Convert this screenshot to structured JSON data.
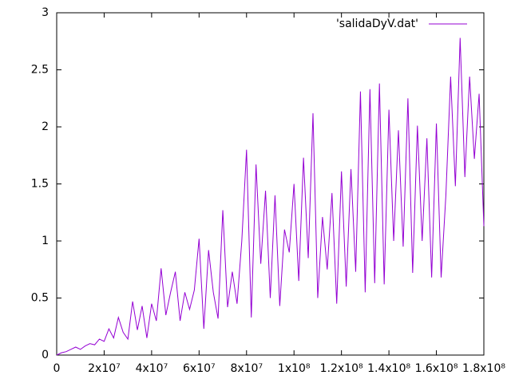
{
  "chart_data": {
    "type": "line",
    "series": [
      {
        "name": "'salidaDyV.dat'",
        "color": "#9400d3",
        "values": [
          0,
          0.02,
          0.03,
          0.05,
          0.07,
          0.05,
          0.08,
          0.1,
          0.09,
          0.14,
          0.12,
          0.23,
          0.15,
          0.33,
          0.2,
          0.14,
          0.47,
          0.22,
          0.43,
          0.15,
          0.45,
          0.3,
          0.76,
          0.35,
          0.55,
          0.73,
          0.3,
          0.55,
          0.4,
          0.57,
          1.02,
          0.23,
          0.92,
          0.55,
          0.32,
          1.27,
          0.42,
          0.73,
          0.45,
          1.0,
          1.8,
          0.33,
          1.67,
          0.8,
          1.44,
          0.5,
          1.4,
          0.43,
          1.1,
          0.9,
          1.5,
          0.65,
          1.73,
          0.85,
          2.12,
          0.5,
          1.21,
          0.75,
          1.42,
          0.45,
          1.61,
          0.6,
          1.63,
          0.73,
          2.31,
          0.55,
          2.33,
          0.63,
          2.38,
          0.62,
          2.15,
          1.0,
          1.97,
          0.95,
          2.25,
          0.72,
          2.01,
          1.0,
          1.9,
          0.68,
          2.03,
          0.68,
          1.4,
          2.44,
          1.48,
          2.78,
          1.56,
          2.44,
          1.72,
          2.29,
          1.13
        ]
      }
    ],
    "x": [
      0,
      2000000,
      4000000,
      6000000,
      8000000,
      10000000,
      12000000,
      14000000,
      16000000,
      18000000,
      20000000,
      22000000,
      24000000,
      26000000,
      28000000,
      30000000,
      32000000,
      34000000,
      36000000,
      38000000,
      40000000,
      42000000,
      44000000,
      46000000,
      48000000,
      50000000,
      52000000,
      54000000,
      56000000,
      58000000,
      60000000,
      62000000,
      64000000,
      66000000,
      68000000,
      70000000,
      72000000,
      74000000,
      76000000,
      78000000,
      80000000,
      82000000,
      84000000,
      86000000,
      88000000,
      90000000,
      92000000,
      94000000,
      96000000,
      98000000,
      100000000,
      102000000,
      104000000,
      106000000,
      108000000,
      110000000,
      112000000,
      114000000,
      116000000,
      118000000,
      120000000,
      122000000,
      124000000,
      126000000,
      128000000,
      130000000,
      132000000,
      134000000,
      136000000,
      138000000,
      140000000,
      142000000,
      144000000,
      146000000,
      148000000,
      150000000,
      152000000,
      154000000,
      156000000,
      158000000,
      160000000,
      162000000,
      164000000,
      166000000,
      168000000,
      170000000,
      172000000,
      174000000,
      176000000,
      178000000,
      180000000
    ],
    "xlim": [
      0,
      180000000
    ],
    "xticks": [
      0,
      {
        "value": 20000000,
        "label": "2x10⁷"
      },
      {
        "value": 40000000,
        "label": "4x10⁷"
      },
      {
        "value": 60000000,
        "label": "6x10⁷"
      },
      {
        "value": 80000000,
        "label": "8x10⁷"
      },
      {
        "value": 100000000,
        "label": "1x10⁸"
      },
      {
        "value": 120000000,
        "label": "1.2x10⁸"
      },
      {
        "value": 140000000,
        "label": "1.4x10⁸"
      },
      {
        "value": 160000000,
        "label": "1.6x10⁸"
      },
      {
        "value": 180000000,
        "label": "1.8x10⁸"
      }
    ],
    "ylim": [
      0,
      3
    ],
    "yticks": [
      0,
      0.5,
      1,
      1.5,
      2,
      2.5,
      3
    ],
    "legend": "top-right"
  }
}
